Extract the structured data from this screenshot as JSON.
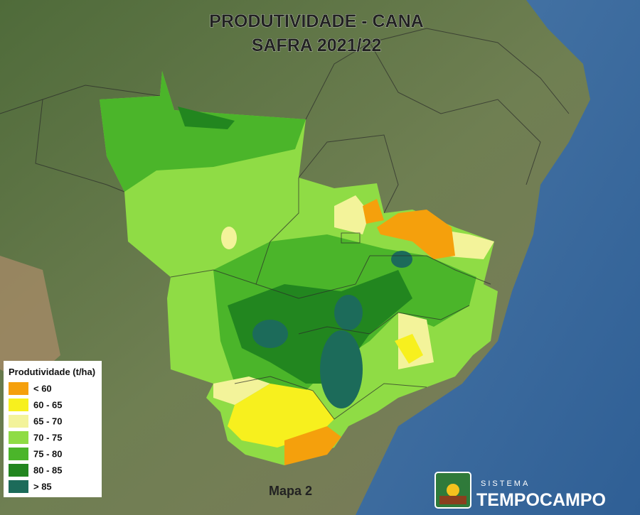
{
  "title": {
    "line1": "PRODUTIVIDADE - CANA",
    "line2": "SAFRA 2021/22"
  },
  "legend": {
    "title": "Produtividade (t/ha)",
    "items": [
      {
        "label": "< 60",
        "color": "#f5a00c"
      },
      {
        "label": "60 - 65",
        "color": "#f7f01e"
      },
      {
        "label": "65 - 70",
        "color": "#f3f39a"
      },
      {
        "label": "70 - 75",
        "color": "#8fdc45"
      },
      {
        "label": "75 - 80",
        "color": "#4bb52a"
      },
      {
        "label": "80 - 85",
        "color": "#22861f"
      },
      {
        "label": "> 85",
        "color": "#1c6b5a"
      }
    ]
  },
  "map_label": "Mapa 2",
  "logo": {
    "top": "SISTEMA",
    "name": "TEMPOCAMPO"
  }
}
